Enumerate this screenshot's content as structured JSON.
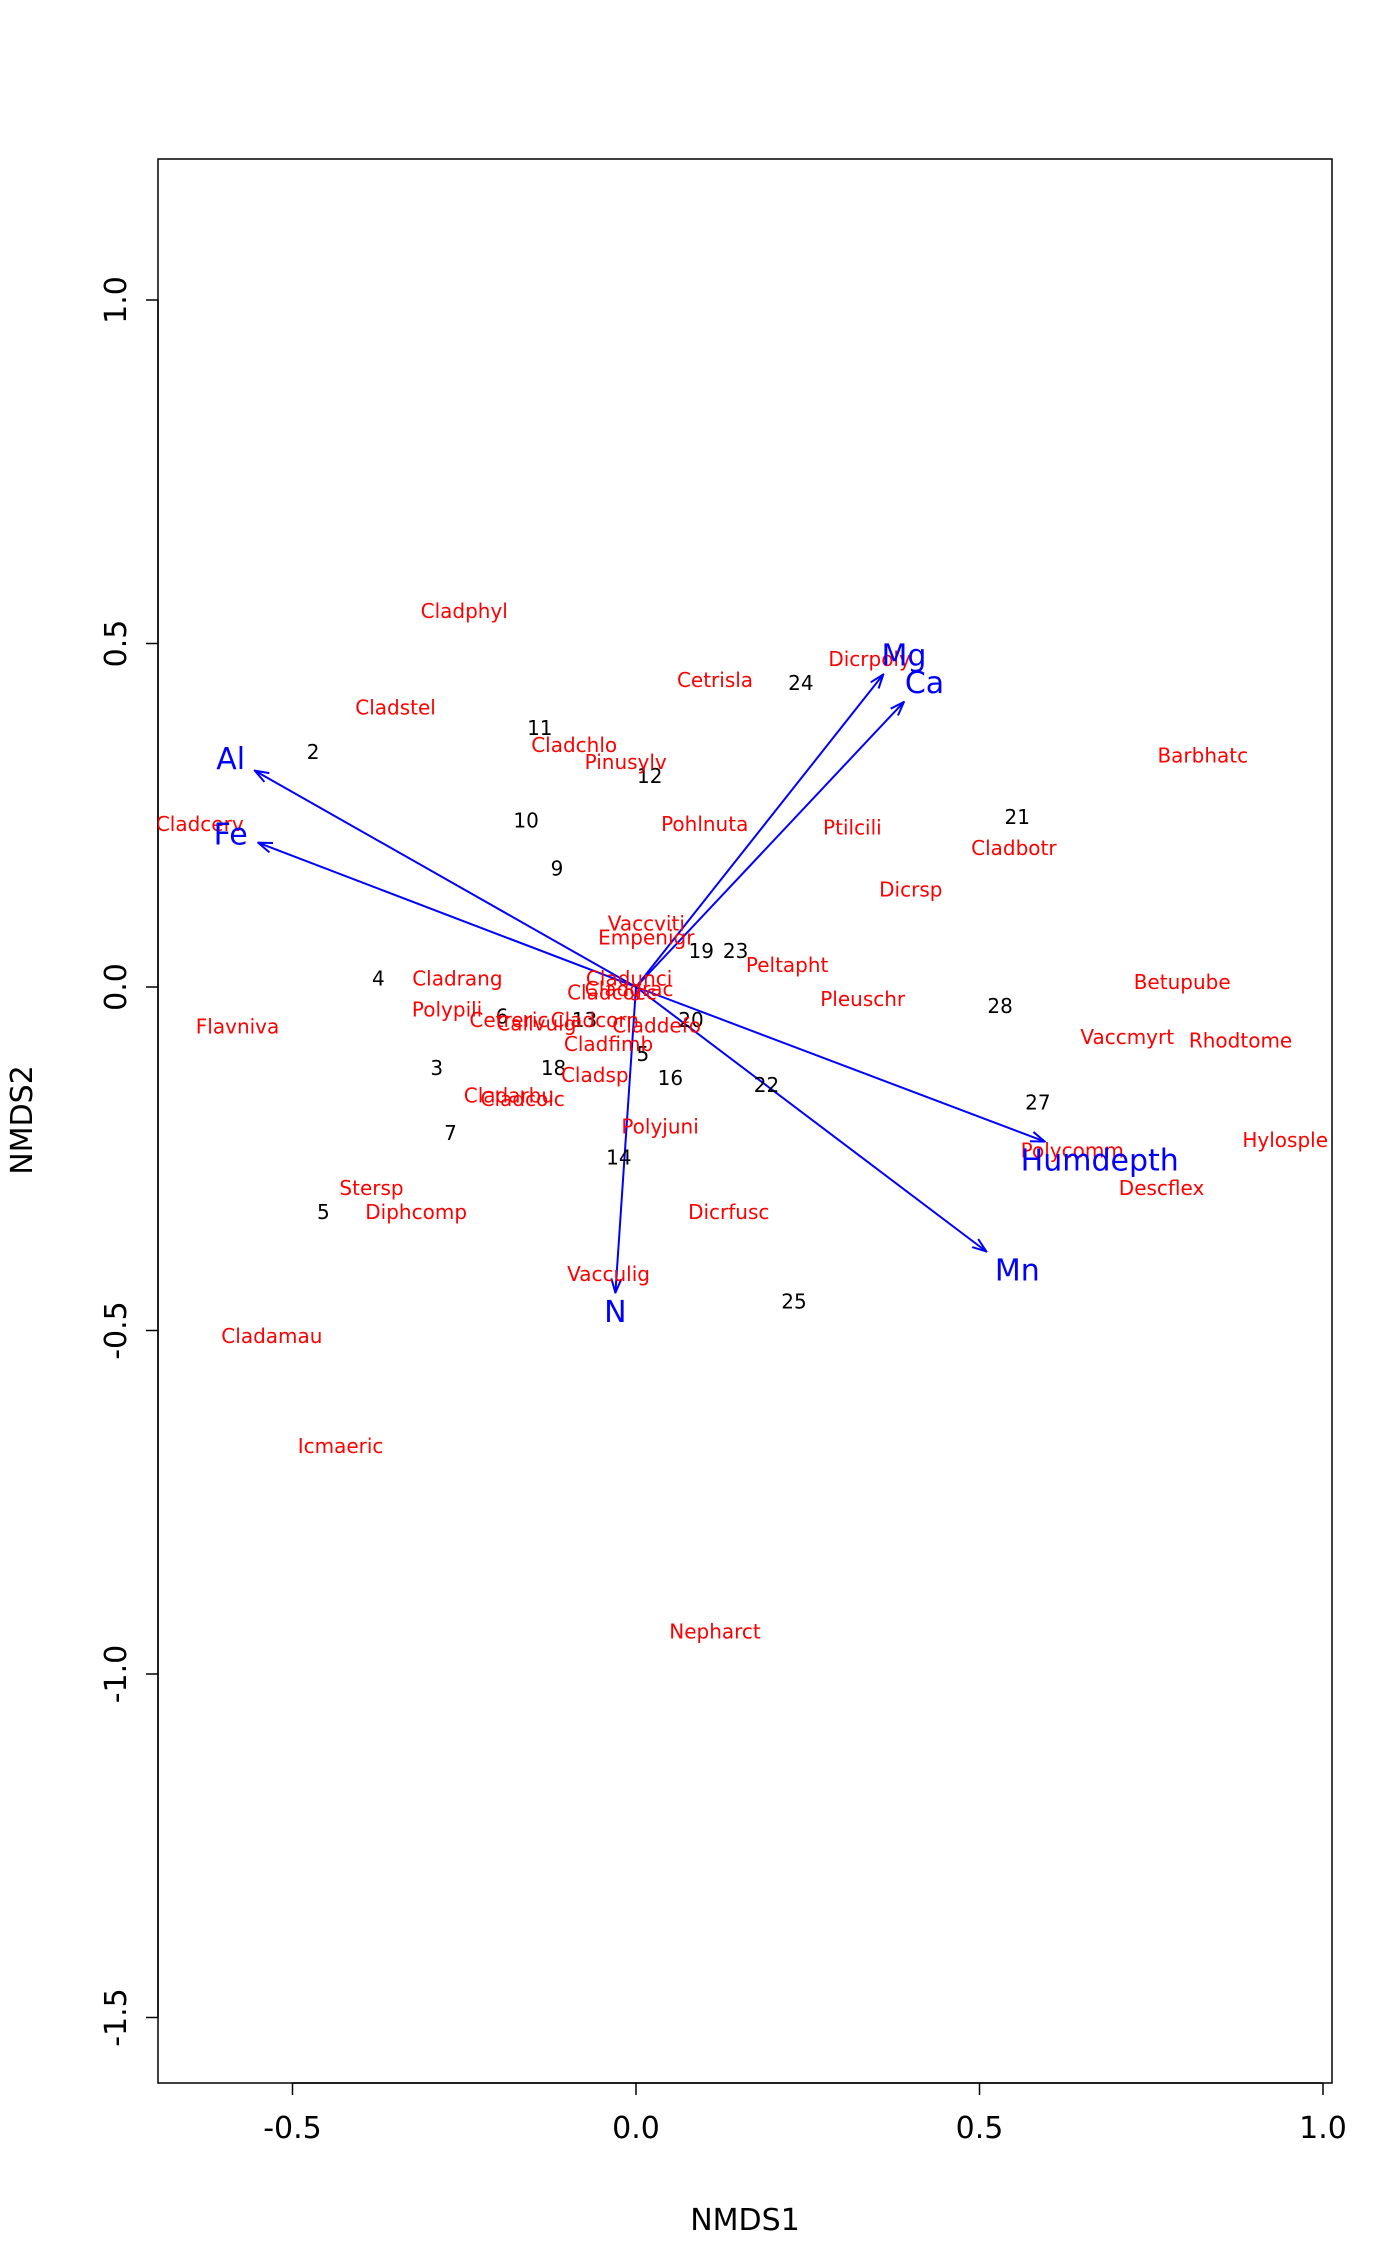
{
  "chart_data": {
    "type": "scatter",
    "xlabel": "NMDS1",
    "ylabel": "NMDS2",
    "xlim": [
      -0.7,
      1.0
    ],
    "ylim": [
      -1.6,
      1.2
    ],
    "xticks": [
      -0.5,
      0.0,
      0.5,
      1.0
    ],
    "xtick_labels": [
      "-0.5",
      "0.0",
      "0.5",
      "1.0"
    ],
    "yticks": [
      -1.5,
      -1.0,
      -0.5,
      0.0,
      0.5,
      1.0
    ],
    "ytick_labels": [
      "-1.5",
      "-1.0",
      "-0.5",
      "0.0",
      "0.5",
      "1.0"
    ],
    "grid": false,
    "colors": {
      "sites": "#000000",
      "species": "#ff0000",
      "vectors": "#0000ff"
    },
    "sites": [
      {
        "label": "2",
        "x": -0.47,
        "y": 0.34
      },
      {
        "label": "3",
        "x": -0.29,
        "y": -0.12
      },
      {
        "label": "4",
        "x": -0.375,
        "y": 0.01
      },
      {
        "label": "5",
        "x": -0.455,
        "y": -0.33
      },
      {
        "label": "5",
        "x": 0.01,
        "y": -0.1
      },
      {
        "label": "6",
        "x": -0.195,
        "y": -0.045
      },
      {
        "label": "7",
        "x": -0.27,
        "y": -0.215
      },
      {
        "label": "9",
        "x": -0.115,
        "y": 0.17
      },
      {
        "label": "10",
        "x": -0.16,
        "y": 0.24
      },
      {
        "label": "11",
        "x": -0.14,
        "y": 0.375
      },
      {
        "label": "12",
        "x": 0.02,
        "y": 0.305
      },
      {
        "label": "13",
        "x": -0.075,
        "y": -0.05
      },
      {
        "label": "14",
        "x": -0.025,
        "y": -0.25
      },
      {
        "label": "16",
        "x": 0.05,
        "y": -0.135
      },
      {
        "label": "18",
        "x": -0.12,
        "y": -0.12
      },
      {
        "label": "19",
        "x": 0.095,
        "y": 0.05
      },
      {
        "label": "20",
        "x": 0.08,
        "y": -0.05
      },
      {
        "label": "21",
        "x": 0.555,
        "y": 0.245
      },
      {
        "label": "22",
        "x": 0.19,
        "y": -0.145
      },
      {
        "label": "23",
        "x": 0.145,
        "y": 0.05
      },
      {
        "label": "24",
        "x": 0.24,
        "y": 0.44
      },
      {
        "label": "25",
        "x": 0.23,
        "y": -0.46
      },
      {
        "label": "27",
        "x": 0.585,
        "y": -0.17
      },
      {
        "label": "28",
        "x": 0.53,
        "y": -0.03
      }
    ],
    "species": [
      {
        "label": "Cladphyl",
        "x": -0.25,
        "y": 0.545
      },
      {
        "label": "Cladstel",
        "x": -0.35,
        "y": 0.405
      },
      {
        "label": "Cladchlo",
        "x": -0.09,
        "y": 0.35
      },
      {
        "label": "Pinusylv",
        "x": -0.015,
        "y": 0.325
      },
      {
        "label": "Cetrisla",
        "x": 0.115,
        "y": 0.445
      },
      {
        "label": "Dicrpoly",
        "x": 0.34,
        "y": 0.475
      },
      {
        "label": "Barbhatc",
        "x": 0.825,
        "y": 0.335
      },
      {
        "label": "Cladcerv",
        "x": -0.635,
        "y": 0.235
      },
      {
        "label": "Pohlnuta",
        "x": 0.1,
        "y": 0.235
      },
      {
        "label": "Ptilcili",
        "x": 0.315,
        "y": 0.23
      },
      {
        "label": "Cladbotr",
        "x": 0.55,
        "y": 0.2
      },
      {
        "label": "Dicrsp",
        "x": 0.4,
        "y": 0.14
      },
      {
        "label": "Vaccviti",
        "x": 0.015,
        "y": 0.09
      },
      {
        "label": "Empenigr",
        "x": 0.015,
        "y": 0.07
      },
      {
        "label": "Peltapht",
        "x": 0.22,
        "y": 0.03
      },
      {
        "label": "Cladunci",
        "x": -0.01,
        "y": 0.01
      },
      {
        "label": "Cladgrac",
        "x": -0.01,
        "y": -0.005
      },
      {
        "label": "Cladcocc",
        "x": -0.035,
        "y": -0.01
      },
      {
        "label": "Cladrang",
        "x": -0.26,
        "y": 0.01
      },
      {
        "label": "Betupube",
        "x": 0.795,
        "y": 0.005
      },
      {
        "label": "Pleuschr",
        "x": 0.33,
        "y": -0.02
      },
      {
        "label": "Polypili",
        "x": -0.275,
        "y": -0.035
      },
      {
        "label": "Cetreric",
        "x": -0.185,
        "y": -0.05
      },
      {
        "label": "Callvulg",
        "x": -0.145,
        "y": -0.055
      },
      {
        "label": "Cladcorn",
        "x": -0.06,
        "y": -0.05
      },
      {
        "label": "Claddefo",
        "x": 0.03,
        "y": -0.058
      },
      {
        "label": "Flavniva",
        "x": -0.58,
        "y": -0.06
      },
      {
        "label": "Vaccmyrt",
        "x": 0.715,
        "y": -0.075
      },
      {
        "label": "Rhodtome",
        "x": 0.88,
        "y": -0.08
      },
      {
        "label": "Cladfimb",
        "x": -0.04,
        "y": -0.085
      },
      {
        "label": "Cladsp",
        "x": -0.06,
        "y": -0.13
      },
      {
        "label": "Cladarbu",
        "x": -0.185,
        "y": -0.16
      },
      {
        "label": "Cladcoic",
        "x": -0.165,
        "y": -0.165
      },
      {
        "label": "Polyjuni",
        "x": 0.035,
        "y": -0.205
      },
      {
        "label": "Polycomm",
        "x": 0.635,
        "y": -0.24
      },
      {
        "label": "Hylosple",
        "x": 0.945,
        "y": -0.225
      },
      {
        "label": "Stersp",
        "x": -0.385,
        "y": -0.295
      },
      {
        "label": "Descflex",
        "x": 0.765,
        "y": -0.295
      },
      {
        "label": "Diphcomp",
        "x": -0.32,
        "y": -0.33
      },
      {
        "label": "Dicrfusc",
        "x": 0.135,
        "y": -0.33
      },
      {
        "label": "Vacculig",
        "x": -0.04,
        "y": -0.42
      },
      {
        "label": "Cladamau",
        "x": -0.53,
        "y": -0.51
      },
      {
        "label": "Icmaeric",
        "x": -0.43,
        "y": -0.67
      },
      {
        "label": "Nepharct",
        "x": 0.115,
        "y": -0.94
      }
    ],
    "vectors": [
      {
        "label": "Al",
        "x": -0.555,
        "y": 0.315,
        "lx": -0.59,
        "ly": 0.33
      },
      {
        "label": "Fe",
        "x": -0.55,
        "y": 0.21,
        "lx": -0.59,
        "ly": 0.22
      },
      {
        "label": "Mg",
        "x": 0.36,
        "y": 0.455,
        "lx": 0.39,
        "ly": 0.48
      },
      {
        "label": "Ca",
        "x": 0.39,
        "y": 0.415,
        "lx": 0.42,
        "ly": 0.44
      },
      {
        "label": "Humdepth",
        "x": 0.595,
        "y": -0.225,
        "lx": 0.675,
        "ly": -0.255
      },
      {
        "label": "Mn",
        "x": 0.51,
        "y": -0.385,
        "lx": 0.555,
        "ly": -0.415
      },
      {
        "label": "N",
        "x": -0.03,
        "y": -0.445,
        "lx": -0.03,
        "ly": -0.475
      }
    ]
  }
}
